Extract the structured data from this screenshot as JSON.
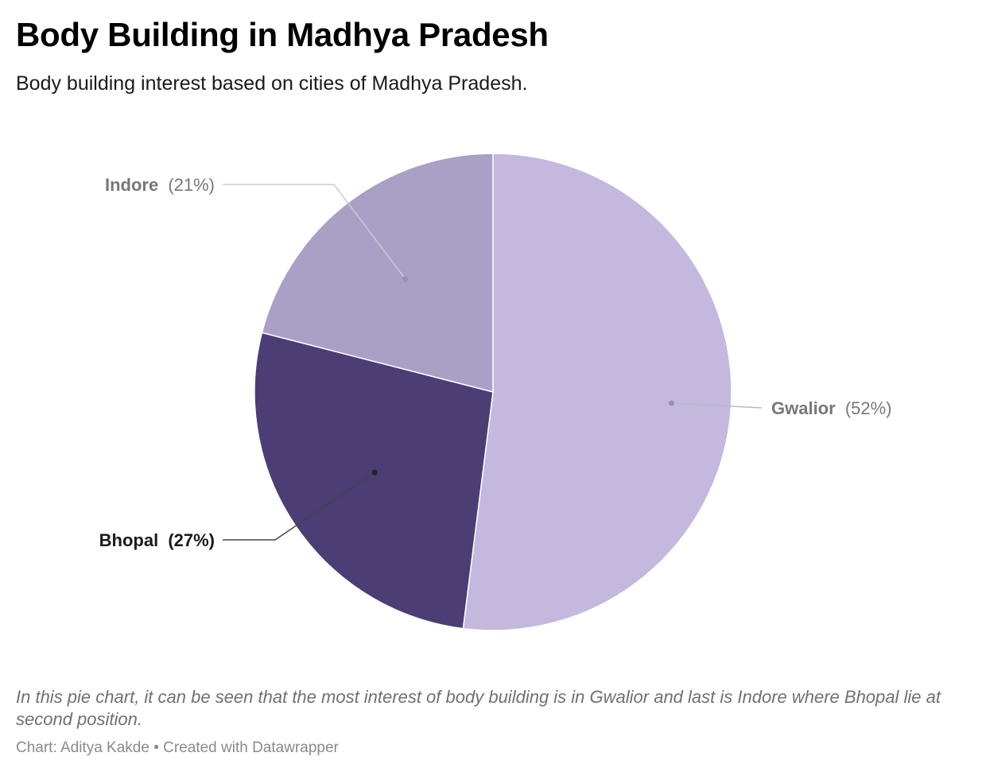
{
  "chart_data": {
    "type": "pie",
    "title": "Body Building in Madhya Pradesh",
    "subtitle": "Body building interest based on cities of Madhya Pradesh.",
    "slices": [
      {
        "name": "Gwalior",
        "value": 52,
        "label": "(52%)",
        "color": "#c4b8de"
      },
      {
        "name": "Bhopal",
        "value": 27,
        "label": "(27%)",
        "color": "#4c3d75"
      },
      {
        "name": "Indore",
        "value": 21,
        "label": "(21%)",
        "color": "#aa9fc4"
      }
    ],
    "notes": "In this pie chart, it can be seen that the most interest of body building is in Gwalior and last is Indore where Bhopal lie at second position.",
    "source": "Chart: Aditya Kakde • Created with Datawrapper"
  }
}
